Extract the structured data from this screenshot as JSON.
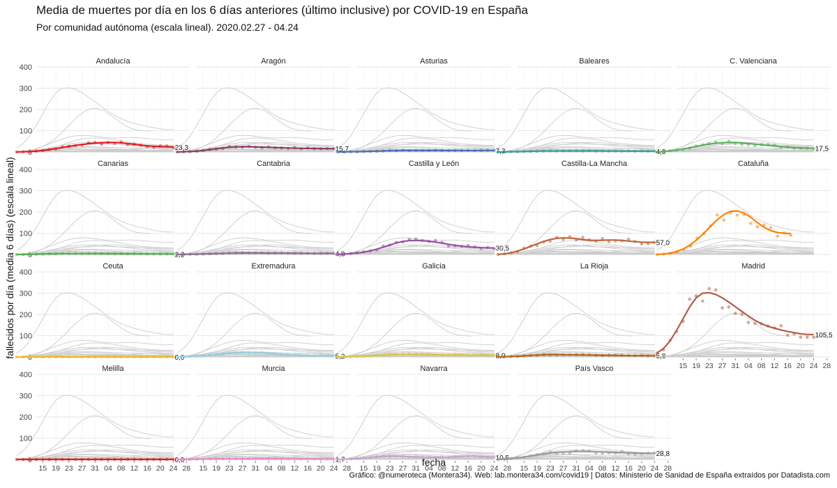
{
  "title": "Media de muertes por día en los 6 días anteriores (último inclusive) por COVID-19 en España",
  "subtitle": "Por comunidad autónoma (escala lineal). 2020.02.27 - 04.24",
  "caption": "Gráfico: @numeroteca (Montera34). Web: lab.montera34.com/covid19 | Datos: Ministerio de Sanidad de España extraídos por Datadista.com",
  "chart_data": {
    "type": "line",
    "xlabel": "fecha",
    "ylabel": "fallecidos por día (media 6 días) (escala lineal)",
    "ylim": [
      0,
      400
    ],
    "y_ticks": [
      0,
      100,
      200,
      300,
      400
    ],
    "x_tick_labels": [
      "15",
      "19",
      "23",
      "27",
      "31",
      "04",
      "08",
      "12",
      "16",
      "20",
      "24",
      "28"
    ],
    "x_ticks_day": [
      0,
      4,
      8,
      12,
      16,
      20,
      24,
      28,
      32,
      36,
      40,
      44
    ],
    "x_range_day": [
      -2,
      45
    ],
    "grid": true,
    "background_series_color": "#cccccc",
    "panels": [
      {
        "name": "Andalucía",
        "color": "#e41a1c",
        "last_label": "23,3",
        "end_day": 40,
        "values": [
          0,
          1,
          2,
          4,
          7,
          11,
          16,
          21,
          26,
          31,
          35,
          39,
          42,
          44,
          45,
          45,
          43,
          40,
          36,
          32,
          29,
          27,
          25,
          24,
          23.3
        ]
      },
      {
        "name": "Aragón",
        "color": "#8b3a62",
        "last_label": "15,7",
        "end_day": 40,
        "values": [
          0,
          1,
          2,
          4,
          7,
          11,
          15,
          19,
          22,
          24,
          25,
          25,
          24,
          23,
          22,
          21,
          20,
          19,
          18,
          17,
          16.5,
          16,
          16,
          15.8,
          15.7
        ]
      },
      {
        "name": "Asturias",
        "color": "#4a6fb0",
        "last_label": "7,3",
        "end_day": 40,
        "values": [
          0,
          0,
          1,
          1,
          2,
          3,
          4,
          5,
          6,
          6,
          7,
          7,
          7,
          7,
          7,
          7,
          7,
          7,
          7,
          7,
          7,
          7,
          7.2,
          7.3,
          7.3
        ]
      },
      {
        "name": "Baleares",
        "color": "#3a9a9a",
        "last_label": "4,0",
        "end_day": 40,
        "values": [
          0,
          0,
          1,
          1,
          2,
          3,
          4,
          5,
          5,
          5,
          5,
          5,
          5,
          5,
          5,
          4.8,
          4.6,
          4.4,
          4.2,
          4.1,
          4,
          4,
          4,
          4,
          4
        ]
      },
      {
        "name": "C. Valenciana",
        "color": "#5aae61",
        "last_label": "17,5",
        "end_day": 40,
        "values": [
          0,
          2,
          5,
          9,
          14,
          20,
          26,
          32,
          37,
          41,
          44,
          45,
          45,
          43,
          40,
          37,
          34,
          31,
          28,
          25,
          23,
          21,
          19.5,
          18.2,
          17.5
        ]
      },
      {
        "name": "Canarias",
        "color": "#4daf4a",
        "last_label": "2,2",
        "end_day": 40,
        "values": [
          0,
          0,
          1,
          1,
          2,
          3,
          3,
          4,
          4,
          4,
          4,
          4,
          4,
          3.5,
          3,
          3,
          3,
          2.8,
          2.6,
          2.5,
          2.4,
          2.3,
          2.2,
          2.2,
          2.2
        ]
      },
      {
        "name": "Cantabria",
        "color": "#8a6d8a",
        "last_label": "4,8",
        "end_day": 40,
        "values": [
          0,
          0,
          1,
          1,
          2,
          3,
          4,
          5,
          6,
          6,
          7,
          7,
          7,
          6.5,
          6,
          6,
          5.8,
          5.6,
          5.4,
          5.2,
          5,
          5,
          4.9,
          4.8,
          4.8
        ]
      },
      {
        "name": "Castilla y León",
        "color": "#984ea3",
        "last_label": "30,5",
        "end_day": 40,
        "values": [
          0,
          2,
          4,
          7,
          11,
          17,
          25,
          34,
          44,
          54,
          61,
          65,
          66,
          65,
          62,
          58,
          53,
          48,
          43,
          39,
          36,
          34,
          32,
          31,
          30.5
        ]
      },
      {
        "name": "Castilla-La Mancha",
        "color": "#c0623c",
        "last_label": "57,0",
        "end_day": 40,
        "values": [
          0,
          3,
          8,
          16,
          26,
          38,
          50,
          61,
          70,
          76,
          78,
          77,
          74,
          70,
          67,
          66,
          67,
          68,
          68,
          66,
          63,
          60,
          58,
          57,
          57
        ]
      },
      {
        "name": "Cataluña",
        "color": "#ff7f00",
        "last_label": "",
        "end_day": 33,
        "values": [
          0,
          2,
          6,
          14,
          27,
          46,
          70,
          100,
          132,
          163,
          188,
          203,
          205,
          195,
          175,
          150,
          128,
          112,
          103,
          100,
          98
        ]
      },
      {
        "name": "Ceuta",
        "color": "#f2b627",
        "last_label": "0,0",
        "end_day": 40,
        "values": [
          0,
          0,
          0,
          0,
          0,
          0,
          0,
          0,
          0,
          0,
          0,
          0,
          0,
          0,
          0,
          0,
          0,
          0,
          0,
          0,
          0,
          0,
          0,
          0,
          0
        ]
      },
      {
        "name": "Extremadura",
        "color": "#8fd0e0",
        "last_label": "5,2",
        "end_day": 40,
        "values": [
          0,
          1,
          2,
          4,
          6,
          9,
          12,
          15,
          18,
          20,
          21,
          21,
          20,
          19,
          17,
          15,
          13,
          11,
          9,
          8,
          7,
          6,
          5.5,
          5.3,
          5.2
        ]
      },
      {
        "name": "Galicia",
        "color": "#d9c541",
        "last_label": "8,0",
        "end_day": 40,
        "values": [
          0,
          0,
          1,
          2,
          3,
          5,
          7,
          9,
          11,
          12,
          13,
          13,
          13,
          12.5,
          12,
          11.5,
          11,
          10.5,
          10,
          9.5,
          9,
          8.6,
          8.3,
          8.1,
          8
        ]
      },
      {
        "name": "La Rioja",
        "color": "#b5651d",
        "last_label": "5,8",
        "end_day": 40,
        "values": [
          0,
          1,
          2,
          3,
          5,
          7,
          9,
          10,
          11,
          11,
          11,
          10.5,
          10,
          9.5,
          9,
          8.5,
          8,
          7.5,
          7,
          6.6,
          6.3,
          6,
          5.9,
          5.8,
          5.8
        ]
      },
      {
        "name": "Madrid",
        "color": "#b35c44",
        "last_label": "105,5",
        "end_day": 40,
        "values": [
          18,
          40,
          75,
          125,
          180,
          235,
          278,
          300,
          302,
          294,
          278,
          258,
          236,
          214,
          192,
          172,
          156,
          144,
          135,
          127,
          120,
          114,
          109,
          106,
          105.5
        ]
      },
      {
        "name": "Melilla",
        "color": "#e41a1c",
        "last_label": "0,0",
        "end_day": 40,
        "values": [
          0,
          0,
          0,
          0,
          0,
          0,
          0,
          0,
          0,
          0,
          0,
          0,
          0,
          0,
          0,
          0,
          0,
          0,
          0,
          0,
          0,
          0,
          0,
          0,
          0
        ]
      },
      {
        "name": "Murcia",
        "color": "#e78ac3",
        "last_label": "1,7",
        "end_day": 40,
        "values": [
          0,
          0,
          0,
          1,
          1,
          2,
          2,
          3,
          3,
          3,
          3,
          3,
          3,
          3,
          3,
          2.8,
          2.6,
          2.4,
          2.2,
          2,
          1.9,
          1.8,
          1.7,
          1.7,
          1.7
        ]
      },
      {
        "name": "Navarra",
        "color": "#c2a5cf",
        "last_label": "10,5",
        "end_day": 40,
        "values": [
          0,
          1,
          2,
          4,
          6,
          9,
          12,
          14,
          15,
          15,
          14,
          13,
          12,
          11,
          10,
          10,
          10,
          11,
          13,
          15,
          16,
          15,
          13,
          11,
          10.5
        ]
      },
      {
        "name": "País Vasco",
        "color": "#999999",
        "last_label": "28,8",
        "end_day": 40,
        "values": [
          0,
          2,
          4,
          7,
          11,
          16,
          21,
          26,
          30,
          33,
          35,
          36,
          37,
          37,
          37,
          36,
          35,
          34,
          33,
          32,
          31,
          30,
          29.5,
          29,
          28.8
        ]
      }
    ]
  }
}
